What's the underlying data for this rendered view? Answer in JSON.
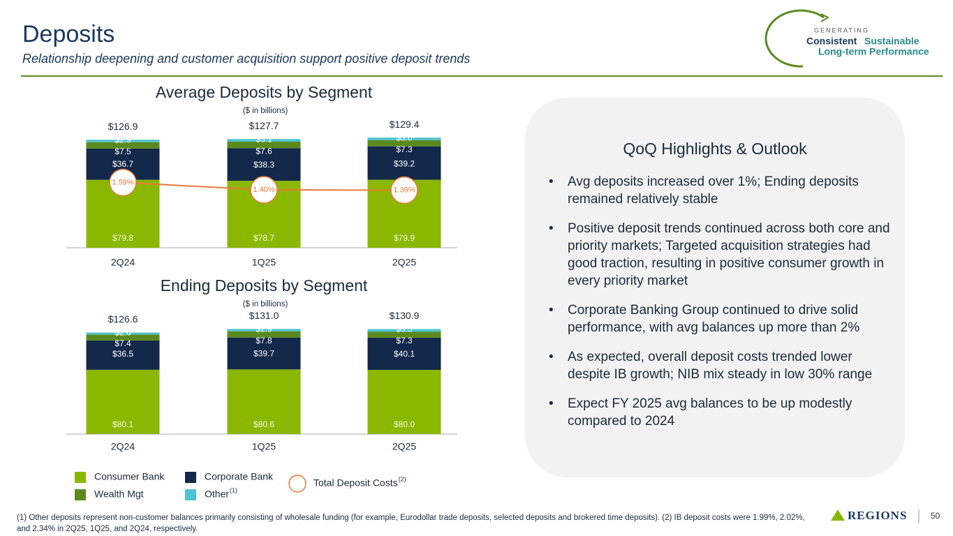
{
  "header": {
    "title": "Deposits",
    "subtitle": "Relationship deepening and customer acquisition support positive deposit trends"
  },
  "logo": {
    "line1": "GENERATING",
    "line2a": "Consistent",
    "line2b": "Sustainable",
    "line3": "Long-term Performance"
  },
  "chart_data": [
    {
      "type": "stacked-bar",
      "title": "Average Deposits by Segment",
      "subtitle": "($ in billions)",
      "categories": [
        "2Q24",
        "1Q25",
        "2Q25"
      ],
      "series": [
        {
          "name": "Consumer Bank",
          "color": "#8ab800",
          "values": [
            79.8,
            78.7,
            79.9
          ],
          "value_labels": [
            "$79.8",
            "$78.7",
            "$79.9"
          ]
        },
        {
          "name": "Corporate Bank",
          "color": "#14284b",
          "values": [
            36.7,
            38.3,
            39.2
          ],
          "value_labels": [
            "$36.7",
            "$38.3",
            "$39.2"
          ]
        },
        {
          "name": "Wealth Mgt",
          "color": "#5a8a1e",
          "values": [
            7.5,
            7.6,
            7.3
          ],
          "value_labels": [
            "$7.5",
            "$7.6",
            "$7.3"
          ]
        },
        {
          "name": "Other",
          "note": "(1)",
          "color": "#4fc3d0",
          "values": [
            2.9,
            3.1,
            3.0
          ],
          "value_labels": [
            "$2.9",
            "$3.1",
            "$3.0"
          ]
        },
        {
          "name": "Total Deposit Costs",
          "note": "(2)",
          "type": "line",
          "color": "#e8783a",
          "values": [
            1.59,
            1.4,
            1.39
          ],
          "value_labels": [
            "1.59%",
            "1.40%",
            "1.39%"
          ]
        }
      ],
      "totals": [
        126.9,
        127.7,
        129.4
      ],
      "total_labels": [
        "$126.9",
        "$127.7",
        "$129.4"
      ]
    },
    {
      "type": "stacked-bar",
      "title": "Ending Deposits by Segment",
      "subtitle": "($ in billions)",
      "categories": [
        "2Q24",
        "1Q25",
        "2Q25"
      ],
      "series": [
        {
          "name": "Consumer Bank",
          "color": "#8ab800",
          "values": [
            80.1,
            80.6,
            80.0
          ],
          "value_labels": [
            "$80.1",
            "$80.6",
            "$80.0"
          ]
        },
        {
          "name": "Corporate Bank",
          "color": "#14284b",
          "values": [
            36.5,
            39.7,
            40.1
          ],
          "value_labels": [
            "$36.5",
            "$39.7",
            "$40.1"
          ]
        },
        {
          "name": "Wealth Mgt",
          "color": "#5a8a1e",
          "values": [
            7.4,
            7.8,
            7.3
          ],
          "value_labels": [
            "$7.4",
            "$7.8",
            "$7.3"
          ]
        },
        {
          "name": "Other",
          "color": "#4fc3d0",
          "values": [
            2.6,
            2.9,
            3.5
          ],
          "value_labels": [
            "$2.6",
            "$2.9",
            "$3.5"
          ]
        }
      ],
      "totals": [
        126.6,
        131.0,
        130.9
      ],
      "total_labels": [
        "$126.6",
        "$131.0",
        "$130.9"
      ]
    }
  ],
  "highlights": {
    "title": "QoQ Highlights & Outlook",
    "bullets": [
      "Avg deposits increased over 1%; Ending deposits remained relatively stable",
      "Positive deposit trends continued across both core and priority markets; Targeted acquisition strategies had good traction, resulting in positive consumer growth in every priority market",
      "Corporate Banking Group continued to drive solid performance, with avg balances up more than 2%",
      "As expected, overall deposit costs trended lower despite IB growth; NIB mix steady in low 30% range",
      "Expect FY 2025 avg balances to be up modestly compared to 2024"
    ]
  },
  "footnote": "(1) Other deposits represent non-customer balances primarily consisting of wholesale funding (for example, Eurodollar trade deposits, selected deposits and brokered time deposits).  (2) IB deposit costs were 1.99%, 2.02%, and 2.34% in 2Q25, 1Q25, and 2Q24, respectively.",
  "brand": "REGIONS",
  "page_number": "50"
}
